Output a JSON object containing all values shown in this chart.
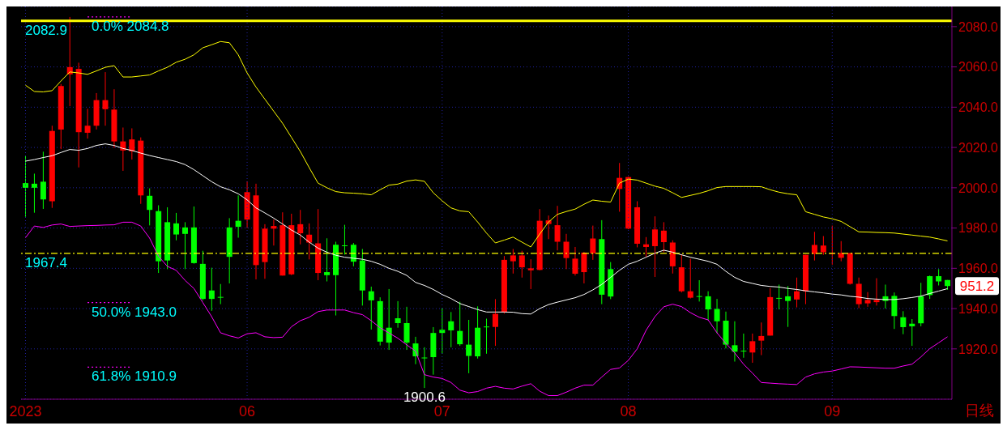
{
  "chart_data": {
    "type": "candlestick",
    "categories": [
      "2023",
      null,
      null,
      null,
      null,
      null,
      null,
      null,
      null,
      null,
      null,
      null,
      null,
      null,
      null,
      null,
      null,
      null,
      null,
      null,
      null,
      null,
      null,
      null,
      null,
      "06",
      null,
      null,
      null,
      null,
      null,
      null,
      null,
      null,
      null,
      null,
      null,
      null,
      null,
      null,
      null,
      null,
      null,
      null,
      null,
      null,
      null,
      "07",
      null,
      null,
      null,
      null,
      null,
      null,
      null,
      null,
      null,
      null,
      null,
      null,
      null,
      null,
      null,
      null,
      null,
      null,
      null,
      null,
      "08",
      null,
      null,
      null,
      null,
      null,
      null,
      null,
      null,
      null,
      null,
      null,
      null,
      null,
      null,
      null,
      null,
      null,
      null,
      null,
      null,
      null,
      null,
      "09",
      null,
      null,
      null,
      null,
      null,
      null,
      null,
      null,
      null,
      null,
      null,
      null,
      null
    ],
    "colors": [
      "#00ff00",
      "#00ff00",
      "#00ff00",
      "#ff0000",
      "#ff0000",
      "#ff0000",
      "#ff0000",
      "#ff0000",
      "#ff0000",
      "#ff0000",
      "#ff0000",
      "#ff0000",
      "#ff0000",
      "#ff0000",
      "#00ff00",
      "#00ff00",
      "#00ff00",
      "#00ff00",
      "#00ff00",
      "#00ff00",
      "#00ff00",
      "#00ff00",
      "#00ff00",
      "#00ff00",
      "#00ff00",
      "#ff0000",
      "#ff0000",
      "#ff0000",
      "#ff0000",
      "#ff0000",
      "#ff0000",
      "#ff0000",
      "#ff0000",
      "#ff0000",
      "#00ff00",
      "#00ff00",
      "#00ff00",
      "#00ff00",
      "#00ff00",
      "#00ff00",
      "#00ff00",
      "#00ff00",
      "#00ff00",
      "#00ff00",
      "#00ff00",
      "#00ff00",
      "#00ff00",
      "#00ff00",
      "#00ff00",
      "#00ff00",
      "#00ff00",
      "#00ff00",
      "#00ff00",
      "#ff0000",
      "#ff0000",
      "#ff0000",
      "#ff0000",
      "#ff0000",
      "#ff0000",
      "#ff0000",
      "#ff0000",
      "#ff0000",
      "#ff0000",
      "#ff0000",
      "#ff0000",
      "#00ff00",
      "#00ff00",
      "#ff0000",
      "#ff0000",
      "#ff0000",
      "#ff0000",
      "#ff0000",
      "#ff0000",
      "#ff0000",
      "#ff0000",
      "#ff0000",
      "#00ff00",
      "#00ff00",
      "#00ff00",
      "#00ff00",
      "#00ff00",
      "#00ff00",
      "#ff0000",
      "#ff0000",
      "#ff0000",
      "#00ff00",
      "#00ff00",
      "#ff0000",
      "#ff0000",
      "#ff0000",
      "#ff0000",
      "#ff0000",
      "#ff0000",
      "#ff0000",
      "#ff0000",
      "#ff0000",
      "#ff0000",
      "#00ff00",
      "#00ff00",
      "#00ff00",
      "#00ff00",
      "#00ff00",
      "#00ff00",
      "#00ff00",
      "#00ff00"
    ],
    "ohlc": [
      [
        2002.3,
        2015.9,
        1985.6,
        2000.0
      ],
      [
        2002.0,
        2007.0,
        1987.6,
        2000.0
      ],
      [
        2003.0,
        2017.9,
        1989.5,
        1994.2
      ],
      [
        1993.3,
        2030.8,
        1990.0,
        2028.2
      ],
      [
        2028.9,
        2051.5,
        2019.2,
        2050.5
      ],
      [
        2056.3,
        2084.8,
        2040.5,
        2059.9
      ],
      [
        2027.6,
        2062.1,
        2010.1,
        2059.0
      ],
      [
        2027.3,
        2039.2,
        2024.4,
        2030.8
      ],
      [
        2030.8,
        2047.0,
        2028.9,
        2043.5
      ],
      [
        2039.0,
        2057.4,
        2030.8,
        2043.5
      ],
      [
        2023.0,
        2048.9,
        2019.8,
        2038.8
      ],
      [
        2018.5,
        2029.9,
        2008.4,
        2023.0
      ],
      [
        2018.1,
        2029.5,
        2014.0,
        2024.0
      ],
      [
        1996.2,
        2025.0,
        1992.0,
        2023.4
      ],
      [
        1996.0,
        1999.7,
        1981.3,
        1989.0
      ],
      [
        1988.4,
        1991.3,
        1957.7,
        1963.5
      ],
      [
        1982.9,
        1990.3,
        1959.6,
        1963.9
      ],
      [
        1982.3,
        1987.5,
        1973.9,
        1976.8
      ],
      [
        1980.3,
        1982.9,
        1959.6,
        1977.1
      ],
      [
        1980.3,
        1990.7,
        1962.3,
        1962.6
      ],
      [
        1962.2,
        1968.7,
        1944.1,
        1944.8
      ],
      [
        1949.0,
        1960.3,
        1938.9,
        1944.8
      ],
      [
        1945.8,
        1952.2,
        1942.2,
        1945.4
      ],
      [
        1980.3,
        1984.9,
        1952.5,
        1965.7
      ],
      [
        1983.6,
        1996.2,
        1975.2,
        1980.6
      ],
      [
        1984.2,
        2003.2,
        1980.0,
        1997.8
      ],
      [
        1961.6,
        2002.0,
        1954.5,
        1996.2
      ],
      [
        1963.1,
        1981.9,
        1954.8,
        1979.7
      ],
      [
        1979.7,
        1984.2,
        1971.3,
        1981.0
      ],
      [
        1956.4,
        1987.8,
        1956.4,
        1981.4
      ],
      [
        1957.0,
        1987.1,
        1956.6,
        1981.4
      ],
      [
        1977.4,
        1989.0,
        1971.9,
        1981.9
      ],
      [
        1972.8,
        1982.3,
        1964.4,
        1976.7
      ],
      [
        1957.7,
        1989.4,
        1954.1,
        1972.4
      ],
      [
        1958.1,
        1974.9,
        1953.5,
        1956.6
      ],
      [
        1971.7,
        1973.2,
        1936.6,
        1956.6
      ],
      [
        1971.4,
        1981.6,
        1966.8,
        1971.2
      ],
      [
        1971.7,
        1972.6,
        1961.0,
        1963.3
      ],
      [
        1963.9,
        1969.6,
        1941.5,
        1949.0
      ],
      [
        1948.6,
        1950.9,
        1929.6,
        1944.1
      ],
      [
        1943.7,
        1945.6,
        1921.7,
        1923.6
      ],
      [
        1930.5,
        1949.7,
        1919.5,
        1923.1
      ],
      [
        1935.2,
        1943.7,
        1930.5,
        1932.8
      ],
      [
        1932.8,
        1940.9,
        1919.5,
        1923.1
      ],
      [
        1922.7,
        1926.0,
        1912.4,
        1916.3
      ],
      [
        1915.7,
        1920.8,
        1900.6,
        1915.3
      ],
      [
        1927.9,
        1930.8,
        1907.2,
        1915.9
      ],
      [
        1929.5,
        1940.2,
        1917.6,
        1927.9
      ],
      [
        1933.7,
        1938.3,
        1920.8,
        1929.2
      ],
      [
        1928.9,
        1943.4,
        1921.5,
        1922.3
      ],
      [
        1922.1,
        1934.4,
        1907.9,
        1916.5
      ],
      [
        1930.5,
        1941.1,
        1915.2,
        1916.3
      ],
      [
        1931.1,
        1935.0,
        1917.6,
        1930.7
      ],
      [
        1930.9,
        1944.7,
        1921.5,
        1937.4
      ],
      [
        1938.3,
        1966.1,
        1937.5,
        1964.2
      ],
      [
        1963.5,
        1969.6,
        1957.4,
        1966.4
      ],
      [
        1960.5,
        1968.7,
        1955.4,
        1966.4
      ],
      [
        1959.0,
        1964.5,
        1949.7,
        1960.0
      ],
      [
        1959.2,
        1989.4,
        1959.0,
        1983.6
      ],
      [
        1982.0,
        1986.2,
        1974.5,
        1983.8
      ],
      [
        1973.2,
        1991.0,
        1968.9,
        1981.4
      ],
      [
        1965.1,
        1977.1,
        1959.6,
        1973.2
      ],
      [
        1957.3,
        1970.6,
        1956.4,
        1964.8
      ],
      [
        1958.1,
        1968.1,
        1952.5,
        1967.8
      ],
      [
        1967.4,
        1981.2,
        1964.2,
        1974.8
      ],
      [
        1974.5,
        1983.9,
        1942.2,
        1946.9
      ],
      [
        1959.6,
        1963.1,
        1944.7,
        1946.0
      ],
      [
        1999.4,
        2012.3,
        1988.1,
        2004.9
      ],
      [
        1979.7,
        2005.6,
        1979.4,
        2005.3
      ],
      [
        1972.2,
        1993.3,
        1970.4,
        1990.3
      ],
      [
        1970.6,
        1975.5,
        1965.7,
        1971.9
      ],
      [
        1971.0,
        1985.8,
        1955.7,
        1979.3
      ],
      [
        1973.0,
        1982.9,
        1968.0,
        1978.7
      ],
      [
        1961.0,
        1973.9,
        1957.4,
        1972.8
      ],
      [
        1948.6,
        1967.0,
        1948.0,
        1960.5
      ],
      [
        1945.4,
        1964.8,
        1945.0,
        1948.6
      ],
      [
        1946.2,
        1954.1,
        1943.5,
        1945.8
      ],
      [
        1946.1,
        1948.6,
        1934.4,
        1939.6
      ],
      [
        1939.8,
        1944.8,
        1927.7,
        1933.7
      ],
      [
        1934.0,
        1938.5,
        1920.2,
        1922.1
      ],
      [
        1921.8,
        1933.7,
        1913.7,
        1918.6
      ],
      [
        1919.1,
        1927.6,
        1915.6,
        1918.7
      ],
      [
        1918.2,
        1927.6,
        1913.1,
        1923.8
      ],
      [
        1924.1,
        1933.1,
        1916.9,
        1926.4
      ],
      [
        1926.6,
        1950.2,
        1926.6,
        1945.7
      ],
      [
        1945.3,
        1951.9,
        1939.6,
        1944.9
      ],
      [
        1946.1,
        1951.2,
        1930.9,
        1943.8
      ],
      [
        1944.5,
        1955.4,
        1940.6,
        1948.6
      ],
      [
        1948.6,
        1966.7,
        1942.2,
        1966.7
      ],
      [
        1967.1,
        1978.1,
        1963.9,
        1971.6
      ],
      [
        1968.0,
        1976.0,
        1966.7,
        1971.3
      ],
      [
        1967.2,
        1981.2,
        1961.8,
        1967.6
      ],
      [
        1965.2,
        1973.5,
        1963.5,
        1967.6
      ],
      [
        1952.3,
        1967.6,
        1951.9,
        1967.6
      ],
      [
        1942.2,
        1955.4,
        1940.2,
        1952.3
      ],
      [
        1942.6,
        1948.2,
        1940.9,
        1944.3
      ],
      [
        1943.2,
        1955.1,
        1941.5,
        1944.3
      ],
      [
        1946.1,
        1951.9,
        1940.0,
        1943.8
      ],
      [
        1946.3,
        1948.0,
        1929.9,
        1936.3
      ],
      [
        1935.7,
        1938.7,
        1927.3,
        1930.8
      ],
      [
        1932.5,
        1934.8,
        1921.5,
        1931.2
      ],
      [
        1946.1,
        1952.8,
        1931.2,
        1932.7
      ],
      [
        1956.1,
        1956.4,
        1944.8,
        1946.7
      ],
      [
        1956.1,
        1959.6,
        1951.5,
        1953.5
      ],
      [
        1954.2,
        1954.2,
        1949.3,
        1951.2
      ]
    ],
    "series": [
      {
        "type": "line",
        "color": "#ffff00",
        "values": [
          2050.9,
          2047.8,
          2047.6,
          2048.2,
          2053,
          2057.5,
          2057,
          2056.3,
          2058,
          2059.8,
          2060.6,
          2055,
          2055,
          2055.5,
          2056,
          2058,
          2059.8,
          2062.3,
          2063.8,
          2066,
          2069.5,
          2071,
          2072.6,
          2072,
          2066,
          2057,
          2050,
          2044,
          2038,
          2032,
          2025,
          2018,
          2010,
          2002.3,
          2000,
          1998.1,
          1997.5,
          1997.3,
          1997,
          1996.5,
          1999,
          2001.3,
          2001.8,
          2003.3,
          2003.9,
          2003.2,
          1997.5,
          1993.5,
          1990,
          1988.5,
          1988.1,
          1983,
          1977.5,
          1972.6,
          1974,
          1975.5,
          1973,
          1970.6,
          1977,
          1983,
          1986.8,
          1988.2,
          1989.4,
          1991.8,
          1993.9,
          1993.3,
          1992.9,
          2002.3,
          2004.3,
          2003.8,
          2002.3,
          2000.8,
          1999.7,
          1997.5,
          1995.2,
          1996.2,
          1997.2,
          1998.5,
          2000.1,
          2000.6,
          2000.6,
          2000.6,
          2000.6,
          2000.5,
          1999,
          1997.8,
          1997,
          1996.5,
          1988.1,
          1986.8,
          1985.5,
          1984.6,
          1983.3,
          1980.7,
          1978.1,
          1978,
          1977.8,
          1977.7,
          1977.5,
          1977,
          1976.5,
          1976,
          1975.5,
          1974.6,
          1973.6
        ]
      },
      {
        "type": "line",
        "color": "#ffffff",
        "values": [
          2013.2,
          2014,
          2015,
          2015.9,
          2017.5,
          2019,
          2018.6,
          2019.5,
          2021,
          2021.8,
          2021,
          2019.5,
          2018.5,
          2017.2,
          2016,
          2015,
          2014,
          2013,
          2011.5,
          2009,
          2006,
          2003,
          2000.5,
          1999,
          1997,
          1994,
          1990,
          1987.5,
          1984.9,
          1982,
          1979,
          1976.5,
          1973,
          1970,
          1968,
          1966.5,
          1965.5,
          1965,
          1964.5,
          1963.5,
          1962,
          1960,
          1958.5,
          1956.5,
          1953,
          1951.5,
          1949.5,
          1947,
          1945,
          1942.5,
          1941,
          1939.5,
          1938.3,
          1938.3,
          1938.3,
          1938.2,
          1937.5,
          1937.3,
          1940,
          1942,
          1943.2,
          1944.3,
          1945.4,
          1947,
          1949.3,
          1952,
          1955.5,
          1959,
          1962,
          1963.5,
          1965.5,
          1967.5,
          1969,
          1968,
          1966.7,
          1965.5,
          1964.5,
          1963.5,
          1962,
          1958.5,
          1955.5,
          1953.5,
          1952.5,
          1951.5,
          1951,
          1950.7,
          1950,
          1949.5,
          1948.8,
          1948.3,
          1947.8,
          1947.2,
          1946.8,
          1946.1,
          1945.7,
          1945,
          1944.7,
          1944.5,
          1944.5,
          1944.9,
          1945.5,
          1946.2,
          1947.5,
          1948.7,
          1949.9
        ]
      },
      {
        "type": "line",
        "color": "#ff00ff",
        "values": [
          1975.2,
          1981,
          1980.3,
          1981.5,
          1982,
          1980.8,
          1981,
          1981.2,
          1981.3,
          1981.5,
          1981.6,
          1982.9,
          1982.9,
          1981,
          1975,
          1966,
          1961,
          1959,
          1954,
          1950,
          1943,
          1936,
          1928,
          1926.5,
          1925.4,
          1927.5,
          1928,
          1926,
          1925.6,
          1925.8,
          1931,
          1934,
          1935.7,
          1938.5,
          1939.3,
          1939.3,
          1939.3,
          1938,
          1937,
          1934,
          1930.5,
          1927.9,
          1925.3,
          1922,
          1918.9,
          1907.2,
          1906,
          1905.3,
          1903.3,
          1899.5,
          1898.2,
          1898.8,
          1900.5,
          1901.4,
          1900.5,
          1900.1,
          1901.5,
          1902.7,
          1899,
          1896.8,
          1896.8,
          1898.5,
          1900.5,
          1902,
          1902,
          1906,
          1909.8,
          1910.5,
          1914.3,
          1920,
          1929.2,
          1936,
          1940.9,
          1942.2,
          1941,
          1938,
          1935.7,
          1934.4,
          1928,
          1922.7,
          1918,
          1912.4,
          1908,
          1903.3,
          1903,
          1902.7,
          1902.5,
          1902.3,
          1906,
          1907.6,
          1908.5,
          1909,
          1910,
          1911.1,
          1911,
          1910.8,
          1910.6,
          1910.4,
          1910.4,
          1911.5,
          1912.4,
          1916,
          1920.1,
          1923,
          1926
        ]
      }
    ],
    "ylim": [
      1895,
      2090
    ],
    "yticks": [
      {
        "value": 1920,
        "label": "1920.0"
      },
      {
        "value": 1940,
        "label": "1940.0"
      },
      {
        "value": 1960,
        "label": "1960.0"
      },
      {
        "value": 1980,
        "label": "1980.0"
      },
      {
        "value": 2000,
        "label": "2000.0"
      },
      {
        "value": 2020,
        "label": "2020.0"
      },
      {
        "value": 2040,
        "label": "2040.0"
      },
      {
        "value": 2060,
        "label": "2060.0"
      },
      {
        "value": 2080,
        "label": "2080.0"
      }
    ],
    "grid": true,
    "ref_lines": [
      {
        "axis": "y",
        "value": 2082.9,
        "label": "2082.9",
        "color": "#ffff00",
        "line_style": "solid"
      },
      {
        "axis": "y",
        "value": 1967.4,
        "label": "1967.4",
        "color": "#ffff00",
        "line_style": "dashed"
      },
      {
        "axis": "y",
        "value": 2084.8,
        "label": "0.0% 2084.8",
        "color": "#ff00ff",
        "line_style": "dotted"
      },
      {
        "axis": "y",
        "value": 1943.0,
        "label": "50.0% 1943.0",
        "color": "#ff00ff",
        "line_style": "dotted"
      },
      {
        "axis": "y",
        "value": 1910.9,
        "label": "61.8% 1910.9",
        "color": "#ff00ff",
        "line_style": "dotted"
      }
    ],
    "annotations": [
      "日线",
      {
        "text": "1900.6",
        "y": 1900.6
      },
      "951.2"
    ]
  }
}
